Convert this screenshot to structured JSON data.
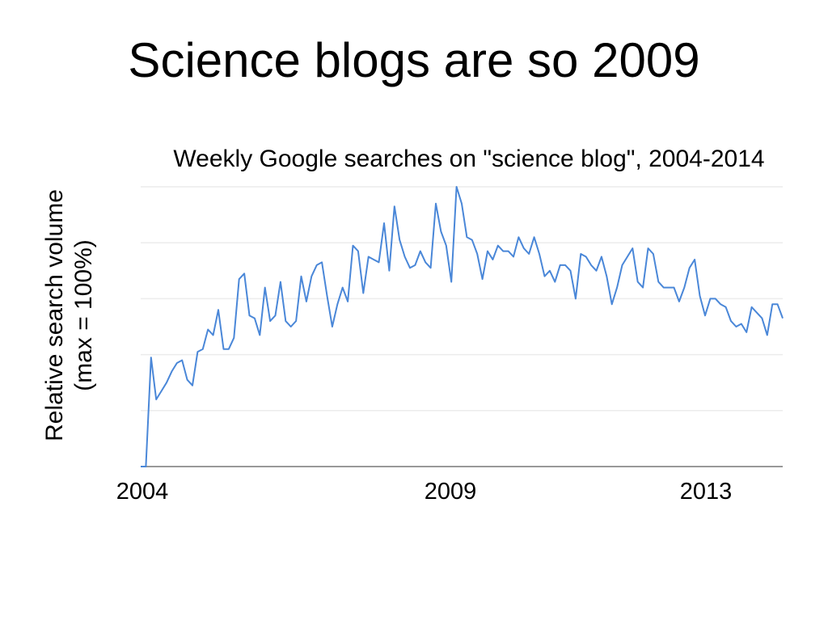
{
  "slide": {
    "title": "Science blogs are so 2009"
  },
  "chart_data": {
    "type": "line",
    "title": "Weekly Google searches on \"science blog\", 2004-2014",
    "ylabel_lines": [
      "Relative search volume",
      "(max = 100%)"
    ],
    "xlabel": "",
    "x_ticks": [
      "2004",
      "2009",
      "2013"
    ],
    "ylim": [
      0,
      100
    ],
    "grid": true,
    "color": "#4a87d8",
    "series": [
      {
        "values": [
          0,
          0,
          39,
          24,
          27,
          30,
          34,
          37,
          38,
          31,
          29,
          41,
          42,
          49,
          47,
          56,
          42,
          42,
          46,
          67,
          69,
          54,
          53,
          47,
          64,
          52,
          54,
          66,
          52,
          50,
          52,
          68,
          59,
          68,
          72,
          73,
          61,
          50,
          58,
          64,
          59,
          79,
          77,
          62,
          75,
          74,
          73,
          87,
          70,
          93,
          81,
          75,
          71,
          72,
          77,
          73,
          71,
          94,
          84,
          79,
          66,
          100,
          94,
          82,
          81,
          76,
          67,
          77,
          74,
          79,
          77,
          77,
          75,
          82,
          78,
          76,
          82,
          76,
          68,
          70,
          66,
          72,
          72,
          70,
          60,
          76,
          75,
          72,
          70,
          75,
          68,
          58,
          64,
          72,
          75,
          78,
          66,
          64,
          78,
          76,
          66,
          64,
          64,
          64,
          59,
          64,
          71,
          74,
          61,
          54,
          60,
          60,
          58,
          57,
          52,
          50,
          51,
          48,
          57,
          55,
          53,
          47,
          58,
          58,
          53
        ]
      }
    ]
  }
}
